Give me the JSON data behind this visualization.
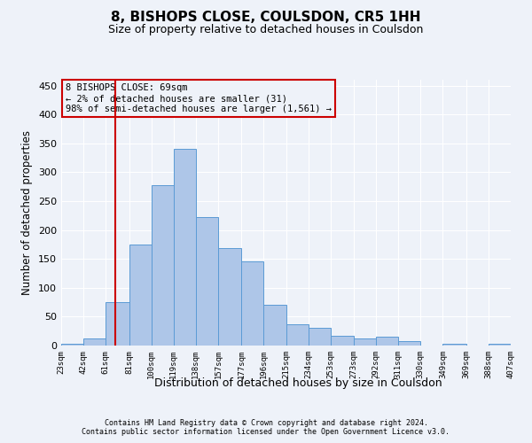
{
  "title": "8, BISHOPS CLOSE, COULSDON, CR5 1HH",
  "subtitle": "Size of property relative to detached houses in Coulsdon",
  "xlabel": "Distribution of detached houses by size in Coulsdon",
  "ylabel": "Number of detached properties",
  "footer_line1": "Contains HM Land Registry data © Crown copyright and database right 2024.",
  "footer_line2": "Contains public sector information licensed under the Open Government Licence v3.0.",
  "annotation_title": "8 BISHOPS CLOSE: 69sqm",
  "annotation_line1": "← 2% of detached houses are smaller (31)",
  "annotation_line2": "98% of semi-detached houses are larger (1,561) →",
  "property_size": 69,
  "bar_edges": [
    23,
    42,
    61,
    81,
    100,
    119,
    138,
    157,
    177,
    196,
    215,
    234,
    253,
    273,
    292,
    311,
    330,
    349,
    369,
    388,
    407
  ],
  "bar_heights": [
    3,
    12,
    75,
    175,
    278,
    340,
    223,
    168,
    145,
    70,
    37,
    30,
    17,
    12,
    15,
    7,
    0,
    3,
    0,
    3
  ],
  "bar_color": "#aec6e8",
  "bar_edge_color": "#5b9bd5",
  "vline_color": "#cc0000",
  "vline_x": 69,
  "annotation_box_color": "#cc0000",
  "ylim": [
    0,
    460
  ],
  "yticks": [
    0,
    50,
    100,
    150,
    200,
    250,
    300,
    350,
    400,
    450
  ],
  "bg_color": "#eef2f9",
  "grid_color": "#ffffff",
  "title_fontsize": 11,
  "subtitle_fontsize": 9,
  "ylabel_fontsize": 8.5,
  "xlabel_fontsize": 9,
  "ytick_fontsize": 8,
  "xtick_fontsize": 6.5
}
